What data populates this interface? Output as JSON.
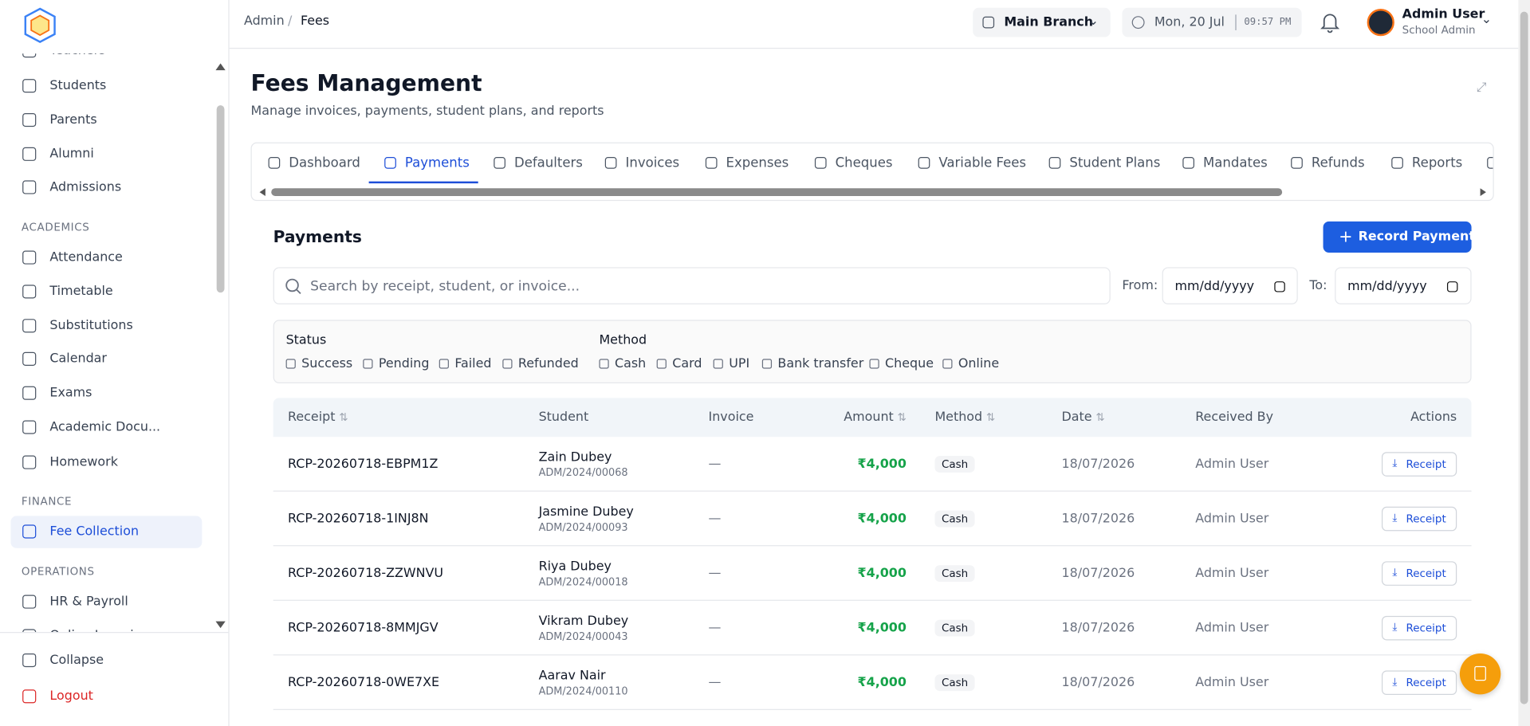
{
  "sidebar": {
    "nav": [
      "Teachers",
      "Students",
      "Parents",
      "Alumni",
      "Admissions",
      "ACADEMICS",
      "Attendance",
      "Timetable",
      "Substitutions",
      "Calendar",
      "Exams",
      "Academic Docu...",
      "Homework",
      "FINANCE",
      "Fee Collection",
      "OPERATIONS",
      "HR & Payroll",
      "Online Learning"
    ],
    "collapse": "Collapse",
    "logout": "Logout"
  },
  "header": {
    "breadcrumb": [
      "Admin",
      "Fees"
    ],
    "branch": "Main Branch",
    "date": "Mon, 20 Jul",
    "time": "09:57 PM",
    "user": "Admin User",
    "role": "School Admin"
  },
  "page": {
    "title": "Fees Management",
    "subtitle": "Manage invoices, payments, student plans, and reports",
    "tabs": [
      "Dashboard",
      "Payments",
      "Defaulters",
      "Invoices",
      "Expenses",
      "Cheques",
      "Variable Fees",
      "Student Plans",
      "Mandates",
      "Refunds",
      "Reports"
    ]
  },
  "payments": {
    "title": "Payments",
    "button": "Record Payment",
    "search": "Search by receipt, student, or invoice...",
    "from": "From:",
    "to": "To:",
    "date_placeholder": "mm/dd/yyyy",
    "status_label": "Status",
    "status": [
      "Success",
      "Pending",
      "Failed",
      "Refunded"
    ],
    "method_label": "Method",
    "methods": [
      "Cash",
      "Card",
      "UPI",
      "Bank transfer",
      "Cheque",
      "Online"
    ]
  },
  "table": {
    "columns": [
      "Receipt",
      "Student",
      "Invoice",
      "Amount",
      "Method",
      "Date",
      "Received By",
      "Actions"
    ],
    "rows": [
      [
        "RCP-20260718-EBPM1Z",
        "Zain Dubey",
        "ADM/2024/00068",
        "—",
        "₹4,000",
        "Cash",
        "18/07/2026",
        "Admin User",
        "Receipt"
      ],
      [
        "RCP-20260718-1INJ8N",
        "Jasmine Dubey",
        "ADM/2024/00093",
        "—",
        "₹4,000",
        "Cash",
        "18/07/2026",
        "Admin User",
        "Receipt"
      ],
      [
        "RCP-20260718-ZZWNVU",
        "Riya Dubey",
        "ADM/2024/00018",
        "—",
        "₹4,000",
        "Cash",
        "18/07/2026",
        "Admin User",
        "Receipt"
      ],
      [
        "RCP-20260718-8MMJGV",
        "Vikram Dubey",
        "ADM/2024/00043",
        "—",
        "₹4,000",
        "Cash",
        "18/07/2026",
        "Admin User",
        "Receipt"
      ],
      [
        "RCP-20260718-0WE7XE",
        "Aarav Nair",
        "ADM/2024/00110",
        "—",
        "₹4,000",
        "Cash",
        "18/07/2026",
        "Admin User",
        "Receipt"
      ]
    ]
  }
}
